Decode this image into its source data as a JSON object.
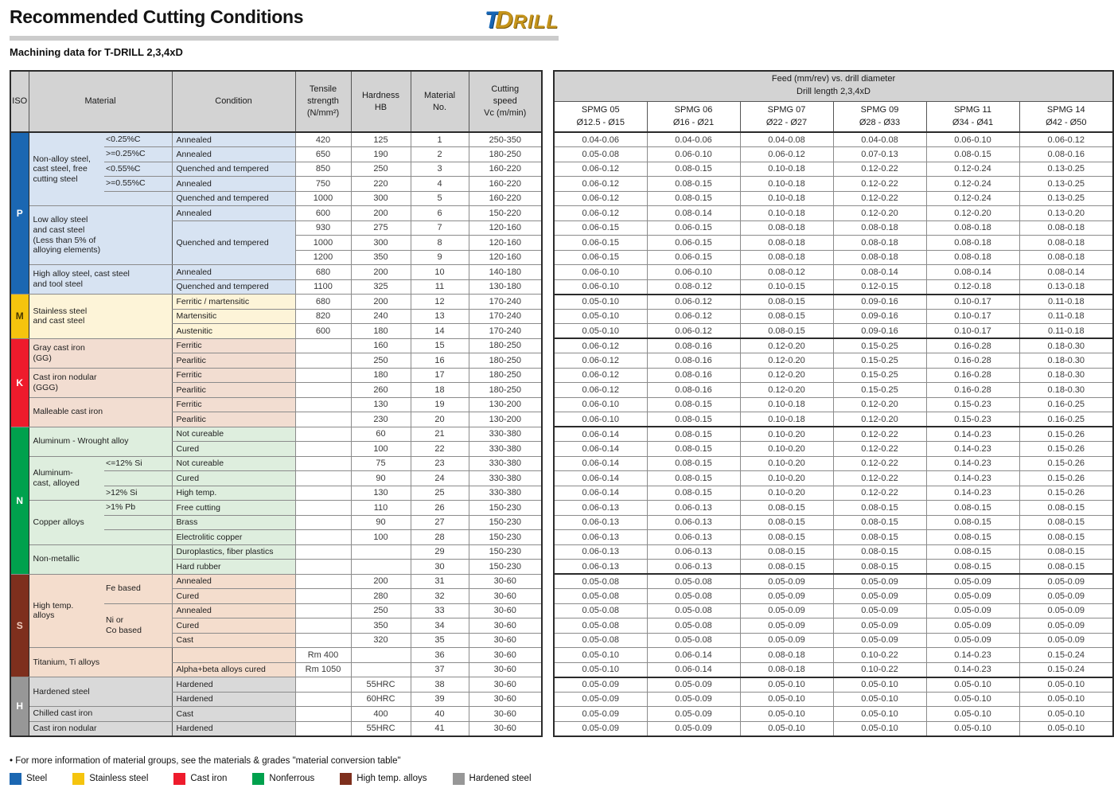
{
  "page": {
    "title": "Recommended Cutting Conditions",
    "subtitle": "Machining data for T-DRILL 2,3,4xD",
    "logo": {
      "t": "T",
      "d": "D",
      "rill": "RILL"
    },
    "footer_note": "• For more information of material groups, see the materials & grades \"material conversion table\"",
    "legend": [
      {
        "label": "Steel",
        "color": "#1b67b2",
        "hatched": false
      },
      {
        "label": "Stainless steel",
        "color": "#f5c40e",
        "hatched": false
      },
      {
        "label": "Cast iron",
        "color": "#ee1b2c",
        "hatched": false
      },
      {
        "label": "Nonferrous",
        "color": "#00a14d",
        "hatched": false
      },
      {
        "label": "High temp. alloys",
        "color": "#7e2f1d",
        "hatched": false
      },
      {
        "label": "Hardened steel",
        "color": "#979797",
        "hatched": true
      }
    ]
  },
  "left_table": {
    "headers": {
      "iso": "ISO",
      "material": "Material",
      "condition": "Condition",
      "tensile": "Tensile\nstrength\n(N/mm²)",
      "hardness": "Hardness\nHB",
      "material_no": "Material\nNo.",
      "cutting_speed": "Cutting\nspeed\nVc (m/min)"
    }
  },
  "right_table": {
    "group_header": "Feed (mm/rev) vs. drill diameter\nDrill length 2,3,4xD",
    "columns": [
      {
        "name": "SPMG 05",
        "range": "Ø12.5 - Ø15"
      },
      {
        "name": "SPMG 06",
        "range": "Ø16 - Ø21"
      },
      {
        "name": "SPMG 07",
        "range": "Ø22 - Ø27"
      },
      {
        "name": "SPMG 09",
        "range": "Ø28 - Ø33"
      },
      {
        "name": "SPMG 11",
        "range": "Ø34 - Ø41"
      },
      {
        "name": "SPMG 14",
        "range": "Ø42 - Ø50"
      }
    ]
  },
  "iso_groups": [
    {
      "code": "P",
      "color": "#1b67b2",
      "text_color": "#ffffff",
      "band": "#d7e3f2",
      "rows": 11,
      "hatched": false
    },
    {
      "code": "M",
      "color": "#f5c40e",
      "text_color": "#4a3a00",
      "band": "#fdf4d8",
      "rows": 3,
      "hatched": false
    },
    {
      "code": "K",
      "color": "#ee1b2c",
      "text_color": "#ffffff",
      "band": "#f2ddd1",
      "rows": 6,
      "hatched": false
    },
    {
      "code": "N",
      "color": "#00a14d",
      "text_color": "#ffffff",
      "band": "#deeede",
      "rows": 10,
      "hatched": false
    },
    {
      "code": "S",
      "color": "#7e2f1d",
      "text_color": "#f0cfc0",
      "band": "#f4ddcd",
      "rows": 7,
      "hatched": false
    },
    {
      "code": "H",
      "color": "#979797",
      "text_color": "#ffffff",
      "band": "#d9d9d9",
      "rows": 4,
      "hatched": true
    }
  ],
  "rows": [
    {
      "no": "1",
      "material": {
        "text": "Non-alloy steel,\ncast steel, free\ncutting steel",
        "rowspan": 5
      },
      "sub": "<0.25%C",
      "condition": "Annealed",
      "tensile": "420",
      "hb": "125",
      "vc": "250-350",
      "feeds": [
        "0.04-0.06",
        "0.04-0.06",
        "0.04-0.08",
        "0.04-0.08",
        "0.06-0.10",
        "0.06-0.12"
      ]
    },
    {
      "no": "2",
      "sub": ">=0.25%C",
      "condition": "Annealed",
      "tensile": "650",
      "hb": "190",
      "vc": "180-250",
      "feeds": [
        "0.05-0.08",
        "0.06-0.10",
        "0.06-0.12",
        "0.07-0.13",
        "0.08-0.15",
        "0.08-0.16"
      ]
    },
    {
      "no": "3",
      "sub": "<0.55%C",
      "condition": "Quenched and tempered",
      "tensile": "850",
      "hb": "250",
      "vc": "160-220",
      "feeds": [
        "0.06-0.12",
        "0.08-0.15",
        "0.10-0.18",
        "0.12-0.22",
        "0.12-0.24",
        "0.13-0.25"
      ]
    },
    {
      "no": "4",
      "sub": ">=0.55%C",
      "condition": "Annealed",
      "tensile": "750",
      "hb": "220",
      "vc": "160-220",
      "feeds": [
        "0.06-0.12",
        "0.08-0.15",
        "0.10-0.18",
        "0.12-0.22",
        "0.12-0.24",
        "0.13-0.25"
      ]
    },
    {
      "no": "5",
      "sub": "",
      "condition": "Quenched and tempered",
      "tensile": "1000",
      "hb": "300",
      "vc": "160-220",
      "feeds": [
        "0.06-0.12",
        "0.08-0.15",
        "0.10-0.18",
        "0.12-0.22",
        "0.12-0.24",
        "0.13-0.25"
      ]
    },
    {
      "no": "6",
      "material": {
        "text": "Low alloy steel\nand cast steel\n(Less than 5% of\nalloying elements)",
        "rowspan": 4,
        "colspan": 2
      },
      "condition": "Annealed",
      "tensile": "600",
      "hb": "200",
      "vc": "150-220",
      "feeds": [
        "0.06-0.12",
        "0.08-0.14",
        "0.10-0.18",
        "0.12-0.20",
        "0.12-0.20",
        "0.13-0.20"
      ]
    },
    {
      "no": "7",
      "condition": {
        "text": "Quenched and tempered",
        "rowspan": 3
      },
      "tensile": "930",
      "hb": "275",
      "vc": "120-160",
      "feeds": [
        "0.06-0.15",
        "0.06-0.15",
        "0.08-0.18",
        "0.08-0.18",
        "0.08-0.18",
        "0.08-0.18"
      ]
    },
    {
      "no": "8",
      "tensile": "1000",
      "hb": "300",
      "vc": "120-160",
      "feeds": [
        "0.06-0.15",
        "0.06-0.15",
        "0.08-0.18",
        "0.08-0.18",
        "0.08-0.18",
        "0.08-0.18"
      ]
    },
    {
      "no": "9",
      "tensile": "1200",
      "hb": "350",
      "vc": "120-160",
      "feeds": [
        "0.06-0.15",
        "0.06-0.15",
        "0.08-0.18",
        "0.08-0.18",
        "0.08-0.18",
        "0.08-0.18"
      ]
    },
    {
      "no": "10",
      "material": {
        "text": "High alloy steel, cast steel\nand tool steel",
        "rowspan": 2,
        "colspan": 2
      },
      "condition": "Annealed",
      "tensile": "680",
      "hb": "200",
      "vc": "140-180",
      "feeds": [
        "0.06-0.10",
        "0.06-0.10",
        "0.08-0.12",
        "0.08-0.14",
        "0.08-0.14",
        "0.08-0.14"
      ]
    },
    {
      "no": "11",
      "condition": "Quenched and tempered",
      "tensile": "1100",
      "hb": "325",
      "vc": "130-180",
      "feeds": [
        "0.06-0.10",
        "0.08-0.12",
        "0.10-0.15",
        "0.12-0.15",
        "0.12-0.18",
        "0.13-0.18"
      ]
    },
    {
      "no": "12",
      "material": {
        "text": "Stainless steel\nand cast steel",
        "rowspan": 3,
        "colspan": 2
      },
      "condition": "Ferritic / martensitic",
      "tensile": "680",
      "hb": "200",
      "vc": "170-240",
      "feeds": [
        "0.05-0.10",
        "0.06-0.12",
        "0.08-0.15",
        "0.09-0.16",
        "0.10-0.17",
        "0.11-0.18"
      ]
    },
    {
      "no": "13",
      "condition": "Martensitic",
      "tensile": "820",
      "hb": "240",
      "vc": "170-240",
      "feeds": [
        "0.05-0.10",
        "0.06-0.12",
        "0.08-0.15",
        "0.09-0.16",
        "0.10-0.17",
        "0.11-0.18"
      ]
    },
    {
      "no": "14",
      "condition": "Austenitic",
      "tensile": "600",
      "hb": "180",
      "vc": "170-240",
      "feeds": [
        "0.05-0.10",
        "0.06-0.12",
        "0.08-0.15",
        "0.09-0.16",
        "0.10-0.17",
        "0.11-0.18"
      ]
    },
    {
      "no": "15",
      "material": {
        "text": "Gray cast iron\n(GG)",
        "rowspan": 2,
        "colspan": 2
      },
      "condition": "Ferritic",
      "tensile": "",
      "hb": "160",
      "vc": "180-250",
      "feeds": [
        "0.06-0.12",
        "0.08-0.16",
        "0.12-0.20",
        "0.15-0.25",
        "0.16-0.28",
        "0.18-0.30"
      ]
    },
    {
      "no": "16",
      "condition": "Pearlitic",
      "tensile": "",
      "hb": "250",
      "vc": "180-250",
      "feeds": [
        "0.06-0.12",
        "0.08-0.16",
        "0.12-0.20",
        "0.15-0.25",
        "0.16-0.28",
        "0.18-0.30"
      ]
    },
    {
      "no": "17",
      "material": {
        "text": "Cast iron nodular\n(GGG)",
        "rowspan": 2,
        "colspan": 2
      },
      "condition": "Ferritic",
      "tensile": "",
      "hb": "180",
      "vc": "180-250",
      "feeds": [
        "0.06-0.12",
        "0.08-0.16",
        "0.12-0.20",
        "0.15-0.25",
        "0.16-0.28",
        "0.18-0.30"
      ]
    },
    {
      "no": "18",
      "condition": "Pearlitic",
      "tensile": "",
      "hb": "260",
      "vc": "180-250",
      "feeds": [
        "0.06-0.12",
        "0.08-0.16",
        "0.12-0.20",
        "0.15-0.25",
        "0.16-0.28",
        "0.18-0.30"
      ]
    },
    {
      "no": "19",
      "material": {
        "text": "Malleable cast iron",
        "rowspan": 2,
        "colspan": 2
      },
      "condition": "Ferritic",
      "tensile": "",
      "hb": "130",
      "vc": "130-200",
      "feeds": [
        "0.06-0.10",
        "0.08-0.15",
        "0.10-0.18",
        "0.12-0.20",
        "0.15-0.23",
        "0.16-0.25"
      ]
    },
    {
      "no": "20",
      "condition": "Pearlitic",
      "tensile": "",
      "hb": "230",
      "vc": "130-200",
      "feeds": [
        "0.06-0.10",
        "0.08-0.15",
        "0.10-0.18",
        "0.12-0.20",
        "0.15-0.23",
        "0.16-0.25"
      ]
    },
    {
      "no": "21",
      "material": {
        "text": "Aluminum - Wrought alloy",
        "rowspan": 2,
        "colspan": 2
      },
      "condition": "Not cureable",
      "tensile": "",
      "hb": "60",
      "vc": "330-380",
      "feeds": [
        "0.06-0.14",
        "0.08-0.15",
        "0.10-0.20",
        "0.12-0.22",
        "0.14-0.23",
        "0.15-0.26"
      ]
    },
    {
      "no": "22",
      "condition": "Cured",
      "tensile": "",
      "hb": "100",
      "vc": "330-380",
      "feeds": [
        "0.06-0.14",
        "0.08-0.15",
        "0.10-0.20",
        "0.12-0.22",
        "0.14-0.23",
        "0.15-0.26"
      ]
    },
    {
      "no": "23",
      "material": {
        "text": "Aluminum-\ncast, alloyed",
        "rowspan": 3
      },
      "sub": "<=12% Si",
      "condition": "Not cureable",
      "tensile": "",
      "hb": "75",
      "vc": "330-380",
      "feeds": [
        "0.06-0.14",
        "0.08-0.15",
        "0.10-0.20",
        "0.12-0.22",
        "0.14-0.23",
        "0.15-0.26"
      ]
    },
    {
      "no": "24",
      "sub": "",
      "condition": "Cured",
      "tensile": "",
      "hb": "90",
      "vc": "330-380",
      "feeds": [
        "0.06-0.14",
        "0.08-0.15",
        "0.10-0.20",
        "0.12-0.22",
        "0.14-0.23",
        "0.15-0.26"
      ]
    },
    {
      "no": "25",
      "sub": ">12% Si",
      "condition": "High temp.",
      "tensile": "",
      "hb": "130",
      "vc": "330-380",
      "feeds": [
        "0.06-0.14",
        "0.08-0.15",
        "0.10-0.20",
        "0.12-0.22",
        "0.14-0.23",
        "0.15-0.26"
      ]
    },
    {
      "no": "26",
      "material": {
        "text": "Copper alloys",
        "rowspan": 3
      },
      "sub": ">1% Pb",
      "condition": "Free cutting",
      "tensile": "",
      "hb": "110",
      "vc": "150-230",
      "feeds": [
        "0.06-0.13",
        "0.06-0.13",
        "0.08-0.15",
        "0.08-0.15",
        "0.08-0.15",
        "0.08-0.15"
      ]
    },
    {
      "no": "27",
      "sub": "",
      "condition": "Brass",
      "tensile": "",
      "hb": "90",
      "vc": "150-230",
      "feeds": [
        "0.06-0.13",
        "0.06-0.13",
        "0.08-0.15",
        "0.08-0.15",
        "0.08-0.15",
        "0.08-0.15"
      ]
    },
    {
      "no": "28",
      "sub": "",
      "condition": "Electrolitic copper",
      "tensile": "",
      "hb": "100",
      "vc": "150-230",
      "feeds": [
        "0.06-0.13",
        "0.06-0.13",
        "0.08-0.15",
        "0.08-0.15",
        "0.08-0.15",
        "0.08-0.15"
      ]
    },
    {
      "no": "29",
      "material": {
        "text": "Non-metallic",
        "rowspan": 2,
        "colspan": 2
      },
      "condition": "Duroplastics, fiber plastics",
      "tensile": "",
      "hb": "",
      "vc": "150-230",
      "feeds": [
        "0.06-0.13",
        "0.06-0.13",
        "0.08-0.15",
        "0.08-0.15",
        "0.08-0.15",
        "0.08-0.15"
      ]
    },
    {
      "no": "30",
      "condition": "Hard rubber",
      "tensile": "",
      "hb": "",
      "vc": "150-230",
      "feeds": [
        "0.06-0.13",
        "0.06-0.13",
        "0.08-0.15",
        "0.08-0.15",
        "0.08-0.15",
        "0.08-0.15"
      ]
    },
    {
      "no": "31",
      "material": {
        "text": "High temp.\nalloys",
        "rowspan": 5
      },
      "sub": {
        "text": "Fe based",
        "rowspan": 2
      },
      "condition": "Annealed",
      "tensile": "",
      "hb": "200",
      "vc": "30-60",
      "feeds": [
        "0.05-0.08",
        "0.05-0.08",
        "0.05-0.09",
        "0.05-0.09",
        "0.05-0.09",
        "0.05-0.09"
      ]
    },
    {
      "no": "32",
      "condition": "Cured",
      "tensile": "",
      "hb": "280",
      "vc": "30-60",
      "feeds": [
        "0.05-0.08",
        "0.05-0.08",
        "0.05-0.09",
        "0.05-0.09",
        "0.05-0.09",
        "0.05-0.09"
      ]
    },
    {
      "no": "33",
      "sub": {
        "text": "Ni or\nCo based",
        "rowspan": 3
      },
      "condition": "Annealed",
      "tensile": "",
      "hb": "250",
      "vc": "30-60",
      "feeds": [
        "0.05-0.08",
        "0.05-0.08",
        "0.05-0.09",
        "0.05-0.09",
        "0.05-0.09",
        "0.05-0.09"
      ]
    },
    {
      "no": "34",
      "condition": "Cured",
      "tensile": "",
      "hb": "350",
      "vc": "30-60",
      "feeds": [
        "0.05-0.08",
        "0.05-0.08",
        "0.05-0.09",
        "0.05-0.09",
        "0.05-0.09",
        "0.05-0.09"
      ]
    },
    {
      "no": "35",
      "condition": "Cast",
      "tensile": "",
      "hb": "320",
      "vc": "30-60",
      "feeds": [
        "0.05-0.08",
        "0.05-0.08",
        "0.05-0.09",
        "0.05-0.09",
        "0.05-0.09",
        "0.05-0.09"
      ]
    },
    {
      "no": "36",
      "material": {
        "text": "Titanium, Ti alloys",
        "rowspan": 2,
        "colspan": 2
      },
      "condition": "",
      "tensile": "Rm 400",
      "hb": "",
      "vc": "30-60",
      "feeds": [
        "0.05-0.10",
        "0.06-0.14",
        "0.08-0.18",
        "0.10-0.22",
        "0.14-0.23",
        "0.15-0.24"
      ]
    },
    {
      "no": "37",
      "condition": "Alpha+beta alloys cured",
      "tensile": "Rm 1050",
      "hb": "",
      "vc": "30-60",
      "feeds": [
        "0.05-0.10",
        "0.06-0.14",
        "0.08-0.18",
        "0.10-0.22",
        "0.14-0.23",
        "0.15-0.24"
      ]
    },
    {
      "no": "38",
      "material": {
        "text": "Hardened steel",
        "rowspan": 2,
        "colspan": 2
      },
      "condition": "Hardened",
      "tensile": "",
      "hb": "55HRC",
      "vc": "30-60",
      "feeds": [
        "0.05-0.09",
        "0.05-0.09",
        "0.05-0.10",
        "0.05-0.10",
        "0.05-0.10",
        "0.05-0.10"
      ]
    },
    {
      "no": "39",
      "condition": "Hardened",
      "tensile": "",
      "hb": "60HRC",
      "vc": "30-60",
      "feeds": [
        "0.05-0.09",
        "0.05-0.09",
        "0.05-0.10",
        "0.05-0.10",
        "0.05-0.10",
        "0.05-0.10"
      ]
    },
    {
      "no": "40",
      "material": {
        "text": "Chilled cast iron",
        "colspan": 2
      },
      "condition": "Cast",
      "tensile": "",
      "hb": "400",
      "vc": "30-60",
      "feeds": [
        "0.05-0.09",
        "0.05-0.09",
        "0.05-0.10",
        "0.05-0.10",
        "0.05-0.10",
        "0.05-0.10"
      ]
    },
    {
      "no": "41",
      "material": {
        "text": "Cast iron nodular",
        "colspan": 2
      },
      "condition": "Hardened",
      "tensile": "",
      "hb": "55HRC",
      "vc": "30-60",
      "feeds": [
        "0.05-0.09",
        "0.05-0.09",
        "0.05-0.10",
        "0.05-0.10",
        "0.05-0.10",
        "0.05-0.10"
      ]
    }
  ]
}
